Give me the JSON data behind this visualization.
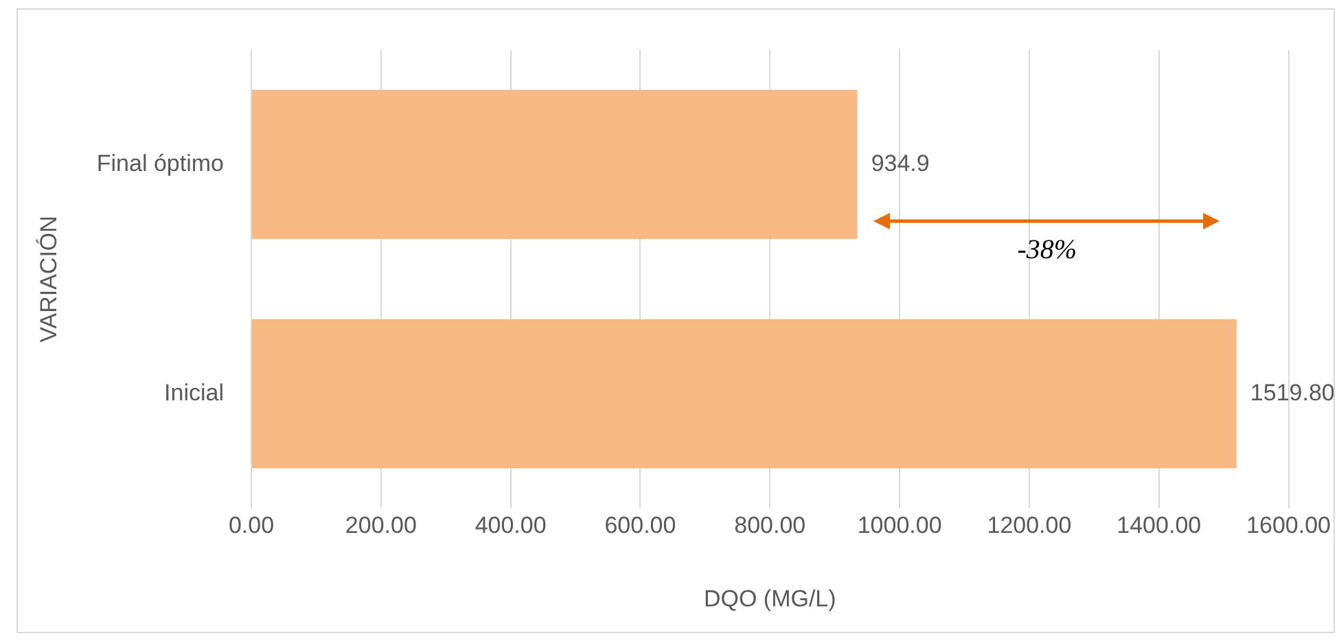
{
  "chart_data": {
    "type": "bar",
    "orientation": "horizontal",
    "categories": [
      "Final óptimo",
      "Inicial"
    ],
    "values": [
      934.9,
      1519.8
    ],
    "value_labels": [
      "934.9",
      "1519.80"
    ],
    "color": "#f9b985",
    "xlabel": "DQO (MG/L)",
    "ylabel": "VARIACIÓN",
    "xlim": [
      0,
      1600
    ],
    "xticks": [
      {
        "value": 0,
        "label": "0.00"
      },
      {
        "value": 200,
        "label": "200.00"
      },
      {
        "value": 400,
        "label": "400.00"
      },
      {
        "value": 600,
        "label": "600.00"
      },
      {
        "value": 800,
        "label": "800.00"
      },
      {
        "value": 1000,
        "label": "1000.00"
      },
      {
        "value": 1200,
        "label": "1200.00"
      },
      {
        "value": 1400,
        "label": "1400.00"
      },
      {
        "value": 1600,
        "label": "1600.00"
      }
    ],
    "grid": "x",
    "legend": false,
    "annotations": [
      "-38%"
    ]
  }
}
